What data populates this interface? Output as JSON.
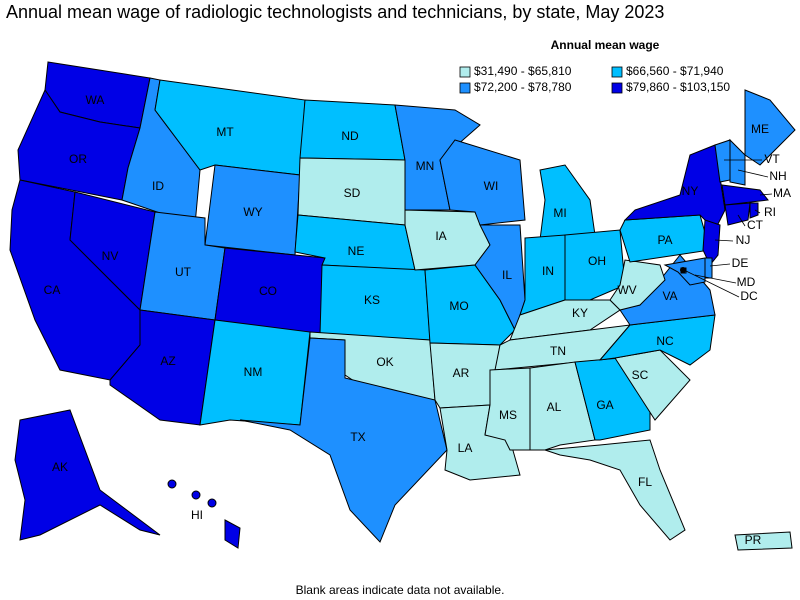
{
  "title": "Annual mean wage of radiologic technologists and technicians, by state, May 2023",
  "legend": {
    "title": "Annual mean wage",
    "items": [
      {
        "label": "$31,490 - $65,810",
        "color": "#b0eded"
      },
      {
        "label": "$66,560 - $71,940",
        "color": "#00bfff"
      },
      {
        "label": "$72,200 - $78,780",
        "color": "#1e90ff"
      },
      {
        "label": "$79,860 - $103,150",
        "color": "#0000e6"
      }
    ]
  },
  "states": [
    {
      "abbr": "WA",
      "class": 3
    },
    {
      "abbr": "OR",
      "class": 3
    },
    {
      "abbr": "CA",
      "class": 3
    },
    {
      "abbr": "NV",
      "class": 3
    },
    {
      "abbr": "ID",
      "class": 2
    },
    {
      "abbr": "MT",
      "class": 1
    },
    {
      "abbr": "WY",
      "class": 2
    },
    {
      "abbr": "UT",
      "class": 2
    },
    {
      "abbr": "CO",
      "class": 3
    },
    {
      "abbr": "AZ",
      "class": 3
    },
    {
      "abbr": "NM",
      "class": 1
    },
    {
      "abbr": "ND",
      "class": 1
    },
    {
      "abbr": "SD",
      "class": 0
    },
    {
      "abbr": "NE",
      "class": 1
    },
    {
      "abbr": "KS",
      "class": 1
    },
    {
      "abbr": "OK",
      "class": 0
    },
    {
      "abbr": "TX",
      "class": 2
    },
    {
      "abbr": "MN",
      "class": 2
    },
    {
      "abbr": "IA",
      "class": 0
    },
    {
      "abbr": "MO",
      "class": 1
    },
    {
      "abbr": "AR",
      "class": 0
    },
    {
      "abbr": "LA",
      "class": 0
    },
    {
      "abbr": "WI",
      "class": 2
    },
    {
      "abbr": "IL",
      "class": 2
    },
    {
      "abbr": "MI",
      "class": 1
    },
    {
      "abbr": "IN",
      "class": 1
    },
    {
      "abbr": "OH",
      "class": 1
    },
    {
      "abbr": "KY",
      "class": 0
    },
    {
      "abbr": "TN",
      "class": 0
    },
    {
      "abbr": "MS",
      "class": 0
    },
    {
      "abbr": "AL",
      "class": 0
    },
    {
      "abbr": "GA",
      "class": 1
    },
    {
      "abbr": "FL",
      "class": 0
    },
    {
      "abbr": "SC",
      "class": 0
    },
    {
      "abbr": "NC",
      "class": 1
    },
    {
      "abbr": "VA",
      "class": 2
    },
    {
      "abbr": "WV",
      "class": 0
    },
    {
      "abbr": "PA",
      "class": 1
    },
    {
      "abbr": "NY",
      "class": 3
    },
    {
      "abbr": "VT",
      "class": 2
    },
    {
      "abbr": "NH",
      "class": 2
    },
    {
      "abbr": "ME",
      "class": 2
    },
    {
      "abbr": "MA",
      "class": 3
    },
    {
      "abbr": "CT",
      "class": 3
    },
    {
      "abbr": "RI",
      "class": 3
    },
    {
      "abbr": "NJ",
      "class": 3
    },
    {
      "abbr": "DE",
      "class": 2
    },
    {
      "abbr": "MD",
      "class": 2
    },
    {
      "abbr": "DC",
      "class": 2
    },
    {
      "abbr": "AK",
      "class": 3
    },
    {
      "abbr": "HI",
      "class": 3
    },
    {
      "abbr": "PR",
      "class": 0
    }
  ],
  "footnote": "Blank areas indicate data not available."
}
